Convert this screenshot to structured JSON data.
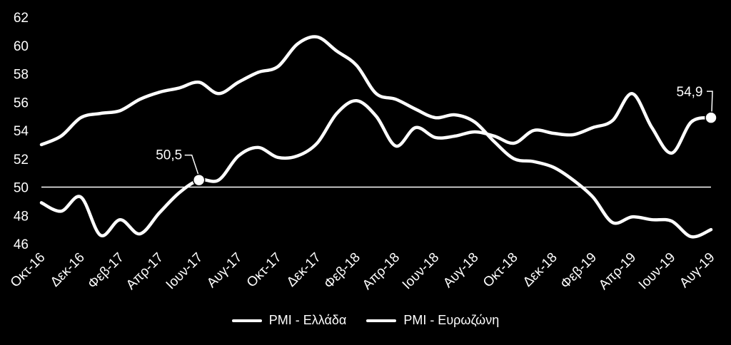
{
  "chart_data": {
    "type": "line",
    "title": "",
    "xlabel": "",
    "ylabel": "",
    "ylim": [
      46,
      62
    ],
    "yticks": [
      46,
      48,
      50,
      52,
      54,
      56,
      58,
      60,
      62
    ],
    "reference_line": 50,
    "grid": false,
    "legend_position": "bottom",
    "x_tick_labels": [
      "Οκτ-16",
      "Δεκ-16",
      "Φεβ-17",
      "Απρ-17",
      "Ιουν-17",
      "Αυγ-17",
      "Οκτ-17",
      "Δεκ-17",
      "Φεβ-18",
      "Απρ-18",
      "Ιουν-18",
      "Αυγ-18",
      "Οκτ-18",
      "Δεκ-18",
      "Φεβ-19",
      "Απρ-19",
      "Ιουν-19",
      "Αυγ-19"
    ],
    "x": [
      "Οκτ-16",
      "Νοε-16",
      "Δεκ-16",
      "Ιαν-17",
      "Φεβ-17",
      "Μαρ-17",
      "Απρ-17",
      "Μαι-17",
      "Ιουν-17",
      "Ιουλ-17",
      "Αυγ-17",
      "Σεπ-17",
      "Οκτ-17",
      "Νοε-17",
      "Δεκ-17",
      "Ιαν-18",
      "Φεβ-18",
      "Μαρ-18",
      "Απρ-18",
      "Μαι-18",
      "Ιουν-18",
      "Ιουλ-18",
      "Αυγ-18",
      "Σεπ-18",
      "Οκτ-18",
      "Νοε-18",
      "Δεκ-18",
      "Ιαν-19",
      "Φεβ-19",
      "Μαρ-19",
      "Απρ-19",
      "Μαι-19",
      "Ιουν-19",
      "Ιουλ-19",
      "Αυγ-19"
    ],
    "series": [
      {
        "name": "PMI - Ελλάδα",
        "color": "#ffffff",
        "values": [
          48.9,
          48.3,
          49.3,
          46.6,
          47.7,
          46.7,
          48.2,
          49.6,
          50.5,
          50.5,
          52.2,
          52.8,
          52.1,
          52.2,
          53.1,
          55.2,
          56.1,
          55.0,
          52.9,
          54.2,
          53.5,
          53.6,
          53.9,
          53.6,
          53.1,
          54.0,
          53.8,
          53.7,
          54.2,
          54.7,
          56.6,
          54.2,
          52.4,
          54.6,
          54.9
        ]
      },
      {
        "name": "PMI - Ευρωζώνη",
        "color": "#ffffff",
        "values": [
          53.0,
          53.6,
          54.9,
          55.2,
          55.4,
          56.2,
          56.7,
          57.0,
          57.4,
          56.6,
          57.4,
          58.1,
          58.5,
          60.1,
          60.6,
          59.6,
          58.6,
          56.6,
          56.2,
          55.5,
          54.9,
          55.1,
          54.6,
          53.2,
          52.0,
          51.8,
          51.4,
          50.5,
          49.3,
          47.5,
          47.9,
          47.7,
          47.6,
          46.5,
          47.0
        ]
      }
    ],
    "annotations": [
      {
        "text": "50,5",
        "series": 0,
        "index": 8
      },
      {
        "text": "54,9",
        "series": 0,
        "index": 34
      }
    ]
  }
}
